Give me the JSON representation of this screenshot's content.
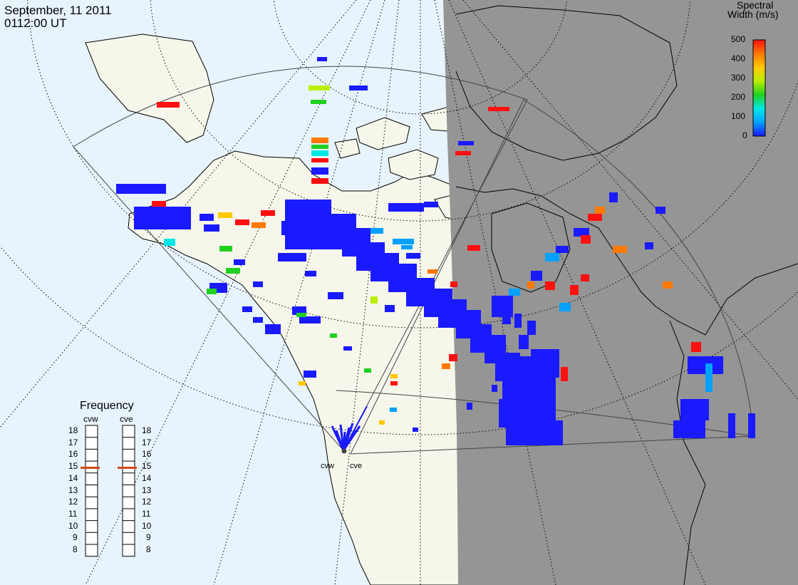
{
  "header": {
    "date": "September, 11 2011",
    "time": "0112:00 UT"
  },
  "colors": {
    "ocean": "#e8f4fc",
    "land_day": "#f6f6ea",
    "night_shade": "#959595",
    "coast": "#000000",
    "grid": "#000000",
    "fov": "#444444",
    "marker": "#d24a1a"
  },
  "colorbar": {
    "title_line1": "Spectral",
    "title_line2": "Width (m/s)",
    "ticks": [
      "500",
      "400",
      "300",
      "200",
      "100",
      "0"
    ],
    "min": 0,
    "max": 500,
    "colormap": [
      "#1a1aff",
      "#00a0ff",
      "#00e8e8",
      "#20d020",
      "#b8f000",
      "#ffc800",
      "#ff7800",
      "#ff1010"
    ]
  },
  "frequency_panel": {
    "title": "Frequency",
    "radars": [
      {
        "name": "cvw",
        "frequency_mhz": 15
      },
      {
        "name": "cve",
        "frequency_mhz": 15
      }
    ],
    "scale": [
      "18",
      "17",
      "16",
      "15",
      "14",
      "13",
      "12",
      "11",
      "10",
      "9",
      "8"
    ]
  },
  "sites": [
    {
      "name": "cvw"
    },
    {
      "name": "cve"
    }
  ]
}
